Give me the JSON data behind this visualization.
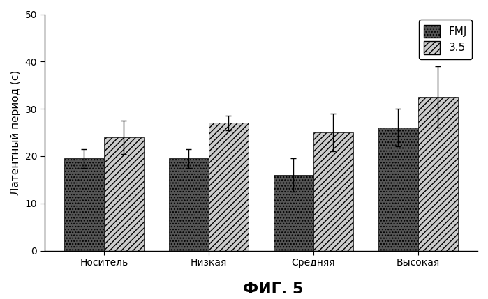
{
  "categories": [
    "Носитель",
    "Низкая",
    "Средняя",
    "Высокая"
  ],
  "fmj_values": [
    19.5,
    19.5,
    16.0,
    26.0
  ],
  "fmj_errors": [
    2.0,
    2.0,
    3.5,
    4.0
  ],
  "series2_values": [
    24.0,
    27.0,
    25.0,
    32.5
  ],
  "series2_errors": [
    3.5,
    1.5,
    4.0,
    6.5
  ],
  "ylabel": "Латентный период (с)",
  "xlabel": "ФИГ. 5",
  "ylim": [
    0,
    50
  ],
  "yticks": [
    0,
    10,
    20,
    30,
    40,
    50
  ],
  "legend_labels": [
    "FMJ",
    "3.5"
  ],
  "fmj_facecolor": "#555555",
  "series2_facecolor": "#cccccc",
  "background_color": "#ffffff",
  "bar_width": 0.38,
  "title_fontsize": 16,
  "label_fontsize": 11,
  "tick_fontsize": 10,
  "legend_fontsize": 11
}
